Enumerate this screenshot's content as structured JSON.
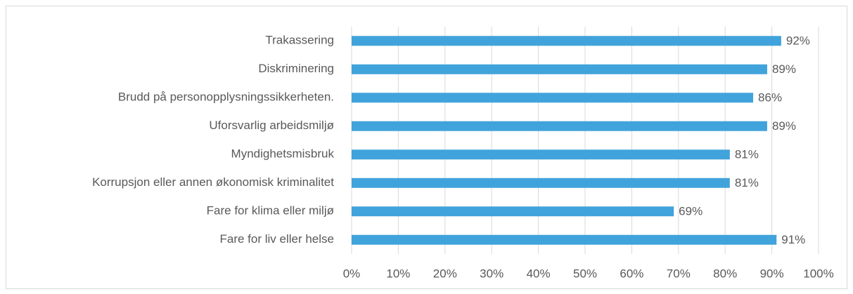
{
  "chart_data": {
    "type": "bar",
    "orientation": "horizontal",
    "categories": [
      "Trakassering",
      "Diskriminering",
      "Brudd på personopplysningssikkerheten.",
      "Uforsvarlig arbeidsmiljø",
      "Myndighetsmisbruk",
      "Korrupsjon eller annen økonomisk kriminalitet",
      "Fare for klima eller miljø",
      "Fare for liv eller helse"
    ],
    "values": [
      92,
      89,
      86,
      89,
      81,
      81,
      69,
      91
    ],
    "value_labels": [
      "92%",
      "89%",
      "86%",
      "89%",
      "81%",
      "81%",
      "69%",
      "91%"
    ],
    "color": "#41a3db",
    "xlim": [
      0,
      100
    ],
    "xticks": [
      {
        "value": 0,
        "label": "0%"
      },
      {
        "value": 10,
        "label": "10%"
      },
      {
        "value": 20,
        "label": "20%"
      },
      {
        "value": 30,
        "label": "30%"
      },
      {
        "value": 40,
        "label": "40%"
      },
      {
        "value": 50,
        "label": "50%"
      },
      {
        "value": 60,
        "label": "60%"
      },
      {
        "value": 70,
        "label": "70%"
      },
      {
        "value": 80,
        "label": "80%"
      },
      {
        "value": 90,
        "label": "90%"
      },
      {
        "value": 100,
        "label": "100%"
      }
    ],
    "grid": true
  }
}
